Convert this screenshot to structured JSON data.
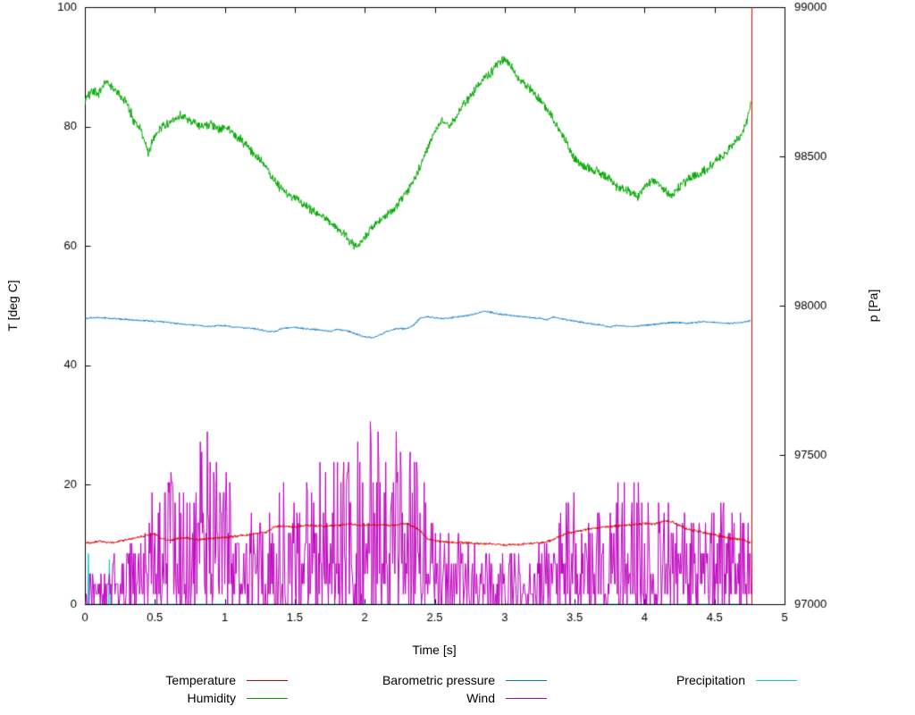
{
  "chart_data": {
    "type": "line",
    "title": "",
    "xlabel": "Time [s]",
    "ylabel_left": "T [deg C]",
    "ylabel_right": "p [Pa]",
    "xlim": [
      0,
      5
    ],
    "ylim_left": [
      0,
      100
    ],
    "ylim_right": [
      97000,
      99000
    ],
    "x_end": 4.76,
    "background": "#ffffff",
    "grid": false,
    "x_ticks": [
      0,
      0.5,
      1,
      1.5,
      2,
      2.5,
      3,
      3.5,
      4,
      4.5,
      5
    ],
    "x_tick_labels": [
      "0",
      "0.5",
      "1",
      "1.5",
      "2",
      "2.5",
      "3",
      "3.5",
      "4",
      "4.5",
      "5"
    ],
    "y_ticks_left": [
      0,
      20,
      40,
      60,
      80,
      100
    ],
    "y_tick_labels_left": [
      "0",
      "20",
      "40",
      "60",
      "80",
      "100"
    ],
    "y_ticks_right": [
      97000,
      97500,
      98000,
      98500,
      99000
    ],
    "y_tick_labels_right": [
      "97000",
      "97500",
      "98000",
      "98500",
      "99000"
    ],
    "legend": {
      "rows": [
        [
          "Temperature",
          "Barometric pressure",
          "Precipitation"
        ],
        [
          "Humidity",
          "Wind",
          ""
        ]
      ]
    },
    "series": [
      {
        "name": "Temperature",
        "color": "#dd0000",
        "axis": "left",
        "style": "jitter",
        "noise": 0.25,
        "end_spike": {
          "x": 4.765,
          "from": 0,
          "to": 100
        },
        "keypoints": [
          [
            0,
            10.4
          ],
          [
            0.05,
            10.2
          ],
          [
            0.1,
            10.6
          ],
          [
            0.15,
            10.4
          ],
          [
            0.2,
            10.3
          ],
          [
            0.25,
            10.6
          ],
          [
            0.3,
            10.8
          ],
          [
            0.35,
            11.0
          ],
          [
            0.4,
            11.3
          ],
          [
            0.45,
            11.6
          ],
          [
            0.5,
            11.8
          ],
          [
            0.55,
            10.9
          ],
          [
            0.6,
            10.7
          ],
          [
            0.65,
            10.9
          ],
          [
            0.7,
            11.1
          ],
          [
            0.75,
            11.0
          ],
          [
            0.8,
            10.8
          ],
          [
            0.85,
            10.9
          ],
          [
            0.9,
            11.0
          ],
          [
            0.95,
            11.1
          ],
          [
            1.0,
            11.2
          ],
          [
            1.1,
            11.4
          ],
          [
            1.2,
            11.7
          ],
          [
            1.3,
            12.1
          ],
          [
            1.35,
            12.9
          ],
          [
            1.4,
            13.1
          ],
          [
            1.45,
            13.0
          ],
          [
            1.5,
            12.9
          ],
          [
            1.55,
            13.1
          ],
          [
            1.6,
            13.2
          ],
          [
            1.7,
            13.0
          ],
          [
            1.8,
            13.2
          ],
          [
            1.9,
            13.4
          ],
          [
            2.0,
            13.2
          ],
          [
            2.1,
            13.3
          ],
          [
            2.2,
            13.2
          ],
          [
            2.25,
            13.4
          ],
          [
            2.3,
            13.5
          ],
          [
            2.35,
            13.0
          ],
          [
            2.4,
            12.2
          ],
          [
            2.45,
            10.9
          ],
          [
            2.5,
            10.6
          ],
          [
            2.6,
            10.4
          ],
          [
            2.7,
            10.3
          ],
          [
            2.8,
            10.2
          ],
          [
            2.9,
            10.1
          ],
          [
            3.0,
            9.9
          ],
          [
            3.1,
            10.0
          ],
          [
            3.2,
            10.2
          ],
          [
            3.3,
            10.4
          ],
          [
            3.35,
            10.9
          ],
          [
            3.4,
            11.4
          ],
          [
            3.45,
            11.9
          ],
          [
            3.5,
            12.1
          ],
          [
            3.6,
            12.6
          ],
          [
            3.7,
            12.9
          ],
          [
            3.8,
            13.1
          ],
          [
            3.9,
            13.3
          ],
          [
            4.0,
            13.5
          ],
          [
            4.05,
            13.4
          ],
          [
            4.1,
            13.6
          ],
          [
            4.15,
            14.0
          ],
          [
            4.2,
            13.7
          ],
          [
            4.25,
            13.2
          ],
          [
            4.3,
            12.6
          ],
          [
            4.4,
            12.1
          ],
          [
            4.5,
            11.6
          ],
          [
            4.6,
            11.1
          ],
          [
            4.7,
            10.8
          ],
          [
            4.76,
            10.3
          ]
        ]
      },
      {
        "name": "Humidity",
        "color": "#00a800",
        "axis": "left",
        "style": "jitter",
        "noise": 0.9,
        "keypoints": [
          [
            0,
            84
          ],
          [
            0.05,
            86
          ],
          [
            0.1,
            85.5
          ],
          [
            0.15,
            87.5
          ],
          [
            0.2,
            86.5
          ],
          [
            0.25,
            85
          ],
          [
            0.3,
            84
          ],
          [
            0.35,
            81
          ],
          [
            0.4,
            79.5
          ],
          [
            0.45,
            75.5
          ],
          [
            0.5,
            78.5
          ],
          [
            0.55,
            80
          ],
          [
            0.6,
            80.5
          ],
          [
            0.65,
            81.5
          ],
          [
            0.7,
            82
          ],
          [
            0.75,
            81
          ],
          [
            0.8,
            80.5
          ],
          [
            0.85,
            80
          ],
          [
            0.9,
            80.5
          ],
          [
            0.95,
            79.5
          ],
          [
            1.0,
            80
          ],
          [
            1.05,
            79
          ],
          [
            1.1,
            78
          ],
          [
            1.15,
            77
          ],
          [
            1.2,
            75.5
          ],
          [
            1.25,
            74.5
          ],
          [
            1.3,
            73
          ],
          [
            1.35,
            71
          ],
          [
            1.4,
            69.5
          ],
          [
            1.45,
            68.5
          ],
          [
            1.5,
            68
          ],
          [
            1.55,
            67
          ],
          [
            1.6,
            66.5
          ],
          [
            1.65,
            65.5
          ],
          [
            1.7,
            65
          ],
          [
            1.75,
            64
          ],
          [
            1.8,
            63
          ],
          [
            1.85,
            62
          ],
          [
            1.9,
            60.5
          ],
          [
            1.95,
            60
          ],
          [
            2.0,
            61.5
          ],
          [
            2.05,
            63
          ],
          [
            2.1,
            64
          ],
          [
            2.15,
            65
          ],
          [
            2.2,
            66
          ],
          [
            2.25,
            67.5
          ],
          [
            2.3,
            69
          ],
          [
            2.35,
            71
          ],
          [
            2.4,
            73.5
          ],
          [
            2.45,
            76.5
          ],
          [
            2.5,
            79
          ],
          [
            2.55,
            81
          ],
          [
            2.6,
            80
          ],
          [
            2.65,
            81.5
          ],
          [
            2.7,
            83.5
          ],
          [
            2.75,
            85
          ],
          [
            2.8,
            86.5
          ],
          [
            2.85,
            88
          ],
          [
            2.9,
            89
          ],
          [
            2.95,
            90.5
          ],
          [
            3.0,
            91.5
          ],
          [
            3.05,
            90
          ],
          [
            3.1,
            88
          ],
          [
            3.15,
            87
          ],
          [
            3.2,
            86
          ],
          [
            3.25,
            84.5
          ],
          [
            3.3,
            83
          ],
          [
            3.35,
            81
          ],
          [
            3.4,
            79
          ],
          [
            3.45,
            77
          ],
          [
            3.5,
            74.5
          ],
          [
            3.55,
            73.5
          ],
          [
            3.6,
            73
          ],
          [
            3.65,
            72.5
          ],
          [
            3.7,
            72
          ],
          [
            3.75,
            71
          ],
          [
            3.8,
            70
          ],
          [
            3.85,
            69.5
          ],
          [
            3.9,
            69
          ],
          [
            3.95,
            68
          ],
          [
            4.0,
            70
          ],
          [
            4.05,
            71
          ],
          [
            4.1,
            70.5
          ],
          [
            4.15,
            69
          ],
          [
            4.2,
            68.5
          ],
          [
            4.25,
            70
          ],
          [
            4.3,
            71
          ],
          [
            4.35,
            71.5
          ],
          [
            4.4,
            72
          ],
          [
            4.45,
            73
          ],
          [
            4.5,
            74
          ],
          [
            4.55,
            75
          ],
          [
            4.6,
            76
          ],
          [
            4.65,
            77.5
          ],
          [
            4.7,
            79
          ],
          [
            4.73,
            81
          ],
          [
            4.76,
            84
          ]
        ]
      },
      {
        "name": "Barometric pressure",
        "color": "#0077cc",
        "axis": "right",
        "style": "jitter",
        "noise": 3.5,
        "keypoints": [
          [
            0,
            97958
          ],
          [
            0.1,
            97960
          ],
          [
            0.2,
            97957
          ],
          [
            0.3,
            97954
          ],
          [
            0.4,
            97950
          ],
          [
            0.5,
            97948
          ],
          [
            0.6,
            97944
          ],
          [
            0.7,
            97938
          ],
          [
            0.8,
            97934
          ],
          [
            0.9,
            97930
          ],
          [
            0.95,
            97934
          ],
          [
            1.0,
            97933
          ],
          [
            1.05,
            97929
          ],
          [
            1.1,
            97927
          ],
          [
            1.15,
            97925
          ],
          [
            1.2,
            97924
          ],
          [
            1.25,
            97920
          ],
          [
            1.3,
            97914
          ],
          [
            1.35,
            97912
          ],
          [
            1.4,
            97922
          ],
          [
            1.45,
            97926
          ],
          [
            1.5,
            97927
          ],
          [
            1.55,
            97924
          ],
          [
            1.6,
            97922
          ],
          [
            1.65,
            97920
          ],
          [
            1.7,
            97917
          ],
          [
            1.75,
            97914
          ],
          [
            1.8,
            97920
          ],
          [
            1.85,
            97918
          ],
          [
            1.9,
            97912
          ],
          [
            1.95,
            97903
          ],
          [
            2.0,
            97896
          ],
          [
            2.05,
            97892
          ],
          [
            2.1,
            97900
          ],
          [
            2.15,
            97912
          ],
          [
            2.2,
            97920
          ],
          [
            2.25,
            97924
          ],
          [
            2.3,
            97922
          ],
          [
            2.35,
            97935
          ],
          [
            2.4,
            97960
          ],
          [
            2.45,
            97962
          ],
          [
            2.5,
            97960
          ],
          [
            2.55,
            97957
          ],
          [
            2.6,
            97958
          ],
          [
            2.65,
            97962
          ],
          [
            2.7,
            97965
          ],
          [
            2.75,
            97968
          ],
          [
            2.8,
            97973
          ],
          [
            2.85,
            97982
          ],
          [
            2.9,
            97978
          ],
          [
            2.95,
            97973
          ],
          [
            3.0,
            97970
          ],
          [
            3.05,
            97967
          ],
          [
            3.1,
            97964
          ],
          [
            3.15,
            97962
          ],
          [
            3.2,
            97960
          ],
          [
            3.25,
            97957
          ],
          [
            3.3,
            97954
          ],
          [
            3.35,
            97963
          ],
          [
            3.4,
            97957
          ],
          [
            3.45,
            97952
          ],
          [
            3.5,
            97949
          ],
          [
            3.55,
            97944
          ],
          [
            3.6,
            97940
          ],
          [
            3.65,
            97937
          ],
          [
            3.7,
            97934
          ],
          [
            3.75,
            97928
          ],
          [
            3.8,
            97934
          ],
          [
            3.85,
            97932
          ],
          [
            3.9,
            97930
          ],
          [
            3.95,
            97932
          ],
          [
            4.0,
            97934
          ],
          [
            4.1,
            97939
          ],
          [
            4.2,
            97944
          ],
          [
            4.3,
            97941
          ],
          [
            4.4,
            97946
          ],
          [
            4.5,
            97944
          ],
          [
            4.6,
            97940
          ],
          [
            4.7,
            97944
          ],
          [
            4.76,
            97949
          ]
        ]
      },
      {
        "name": "Wind",
        "color": "#bf00bf",
        "axis": "left",
        "style": "spiky",
        "quantize": 1.7,
        "envelope": [
          [
            0,
            7
          ],
          [
            0.3,
            9
          ],
          [
            0.45,
            16
          ],
          [
            0.55,
            25
          ],
          [
            0.7,
            24
          ],
          [
            0.8,
            26
          ],
          [
            0.9,
            34
          ],
          [
            1.0,
            24
          ],
          [
            1.1,
            18
          ],
          [
            1.25,
            15
          ],
          [
            1.4,
            20
          ],
          [
            1.6,
            22
          ],
          [
            1.75,
            27
          ],
          [
            1.9,
            25
          ],
          [
            2.0,
            31
          ],
          [
            2.1,
            30
          ],
          [
            2.25,
            28
          ],
          [
            2.35,
            29
          ],
          [
            2.5,
            14
          ],
          [
            2.7,
            11
          ],
          [
            2.9,
            12
          ],
          [
            3.1,
            9
          ],
          [
            3.3,
            11
          ],
          [
            3.45,
            22
          ],
          [
            3.55,
            17
          ],
          [
            3.7,
            17
          ],
          [
            3.9,
            23
          ],
          [
            4.0,
            19
          ],
          [
            4.15,
            18
          ],
          [
            4.3,
            16
          ],
          [
            4.45,
            16
          ],
          [
            4.6,
            19
          ],
          [
            4.76,
            15
          ]
        ]
      },
      {
        "name": "Precipitation",
        "color": "#00d0d0",
        "axis": "left",
        "style": "plain",
        "keypoints": [
          [
            0,
            0
          ],
          [
            0.02,
            0
          ],
          [
            0.025,
            8.5
          ],
          [
            0.03,
            0
          ],
          [
            0.17,
            0
          ],
          [
            0.175,
            7.5
          ],
          [
            0.18,
            0
          ],
          [
            4.76,
            0
          ]
        ]
      }
    ]
  }
}
